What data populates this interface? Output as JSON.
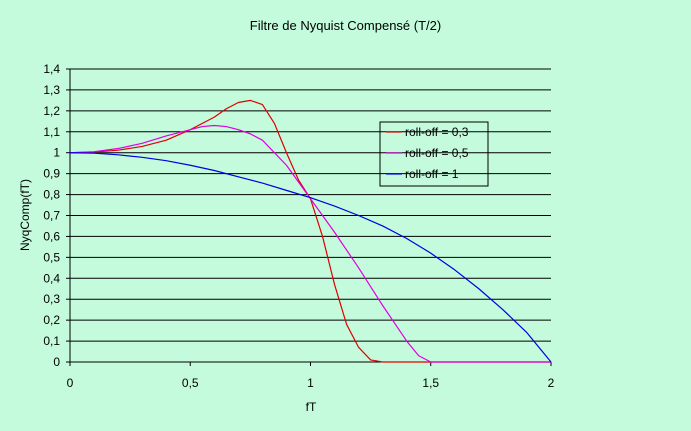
{
  "chart_data": {
    "type": "line",
    "title": "Filtre de Nyquist Compensé (T/2)",
    "xlabel": "fT",
    "ylabel": "NyqComp(fT)",
    "xlim": [
      0,
      2
    ],
    "ylim": [
      0,
      1.4
    ],
    "xticks": [
      0,
      0.5,
      1,
      1.5,
      2
    ],
    "xtick_labels": [
      "0",
      "0,5",
      "1",
      "1,5",
      "2"
    ],
    "yticks": [
      0,
      0.1,
      0.2,
      0.3,
      0.4,
      0.5,
      0.6,
      0.7,
      0.8,
      0.9,
      1,
      1.1,
      1.2,
      1.3,
      1.4
    ],
    "ytick_labels": [
      "0",
      "0,1",
      "0,2",
      "0,3",
      "0,4",
      "0,5",
      "0,6",
      "0,7",
      "0,8",
      "0,9",
      "1",
      "1,1",
      "1,2",
      "1,3",
      "1,4"
    ],
    "grid": "horizontal",
    "legend_position": "right",
    "series": [
      {
        "name": "roll-off = 0,3",
        "color": "#e00000",
        "x": [
          0,
          0.1,
          0.2,
          0.3,
          0.4,
          0.5,
          0.6,
          0.65,
          0.7,
          0.75,
          0.8,
          0.85,
          0.9,
          0.95,
          1.0,
          1.05,
          1.1,
          1.15,
          1.2,
          1.25,
          1.3,
          1.4,
          1.5,
          1.6,
          1.7,
          1.8,
          1.9,
          2.0
        ],
        "values": [
          1.0,
          1.003,
          1.012,
          1.03,
          1.06,
          1.11,
          1.17,
          1.21,
          1.24,
          1.25,
          1.23,
          1.14,
          1.0,
          0.87,
          0.78,
          0.6,
          0.37,
          0.18,
          0.07,
          0.01,
          0,
          0,
          0,
          0,
          0,
          0,
          0,
          0
        ]
      },
      {
        "name": "roll-off = 0,5",
        "color": "#e000e0",
        "x": [
          0,
          0.1,
          0.2,
          0.3,
          0.4,
          0.5,
          0.55,
          0.6,
          0.65,
          0.7,
          0.75,
          0.8,
          0.9,
          1.0,
          1.1,
          1.2,
          1.3,
          1.4,
          1.45,
          1.5,
          1.6,
          1.7,
          1.8,
          1.9,
          2.0
        ],
        "values": [
          1.0,
          1.005,
          1.02,
          1.045,
          1.08,
          1.11,
          1.125,
          1.13,
          1.125,
          1.11,
          1.09,
          1.06,
          0.94,
          0.78,
          0.62,
          0.45,
          0.27,
          0.1,
          0.03,
          0,
          0,
          0,
          0,
          0,
          0
        ]
      },
      {
        "name": "roll-off = 1",
        "color": "#0000e0",
        "x": [
          0,
          0.1,
          0.2,
          0.3,
          0.4,
          0.5,
          0.6,
          0.7,
          0.8,
          0.9,
          1.0,
          1.1,
          1.2,
          1.3,
          1.4,
          1.5,
          1.6,
          1.7,
          1.8,
          1.9,
          2.0
        ],
        "values": [
          1.0,
          0.998,
          0.99,
          0.978,
          0.962,
          0.94,
          0.915,
          0.885,
          0.855,
          0.82,
          0.785,
          0.745,
          0.7,
          0.65,
          0.59,
          0.52,
          0.44,
          0.35,
          0.25,
          0.14,
          0.0
        ]
      }
    ]
  }
}
